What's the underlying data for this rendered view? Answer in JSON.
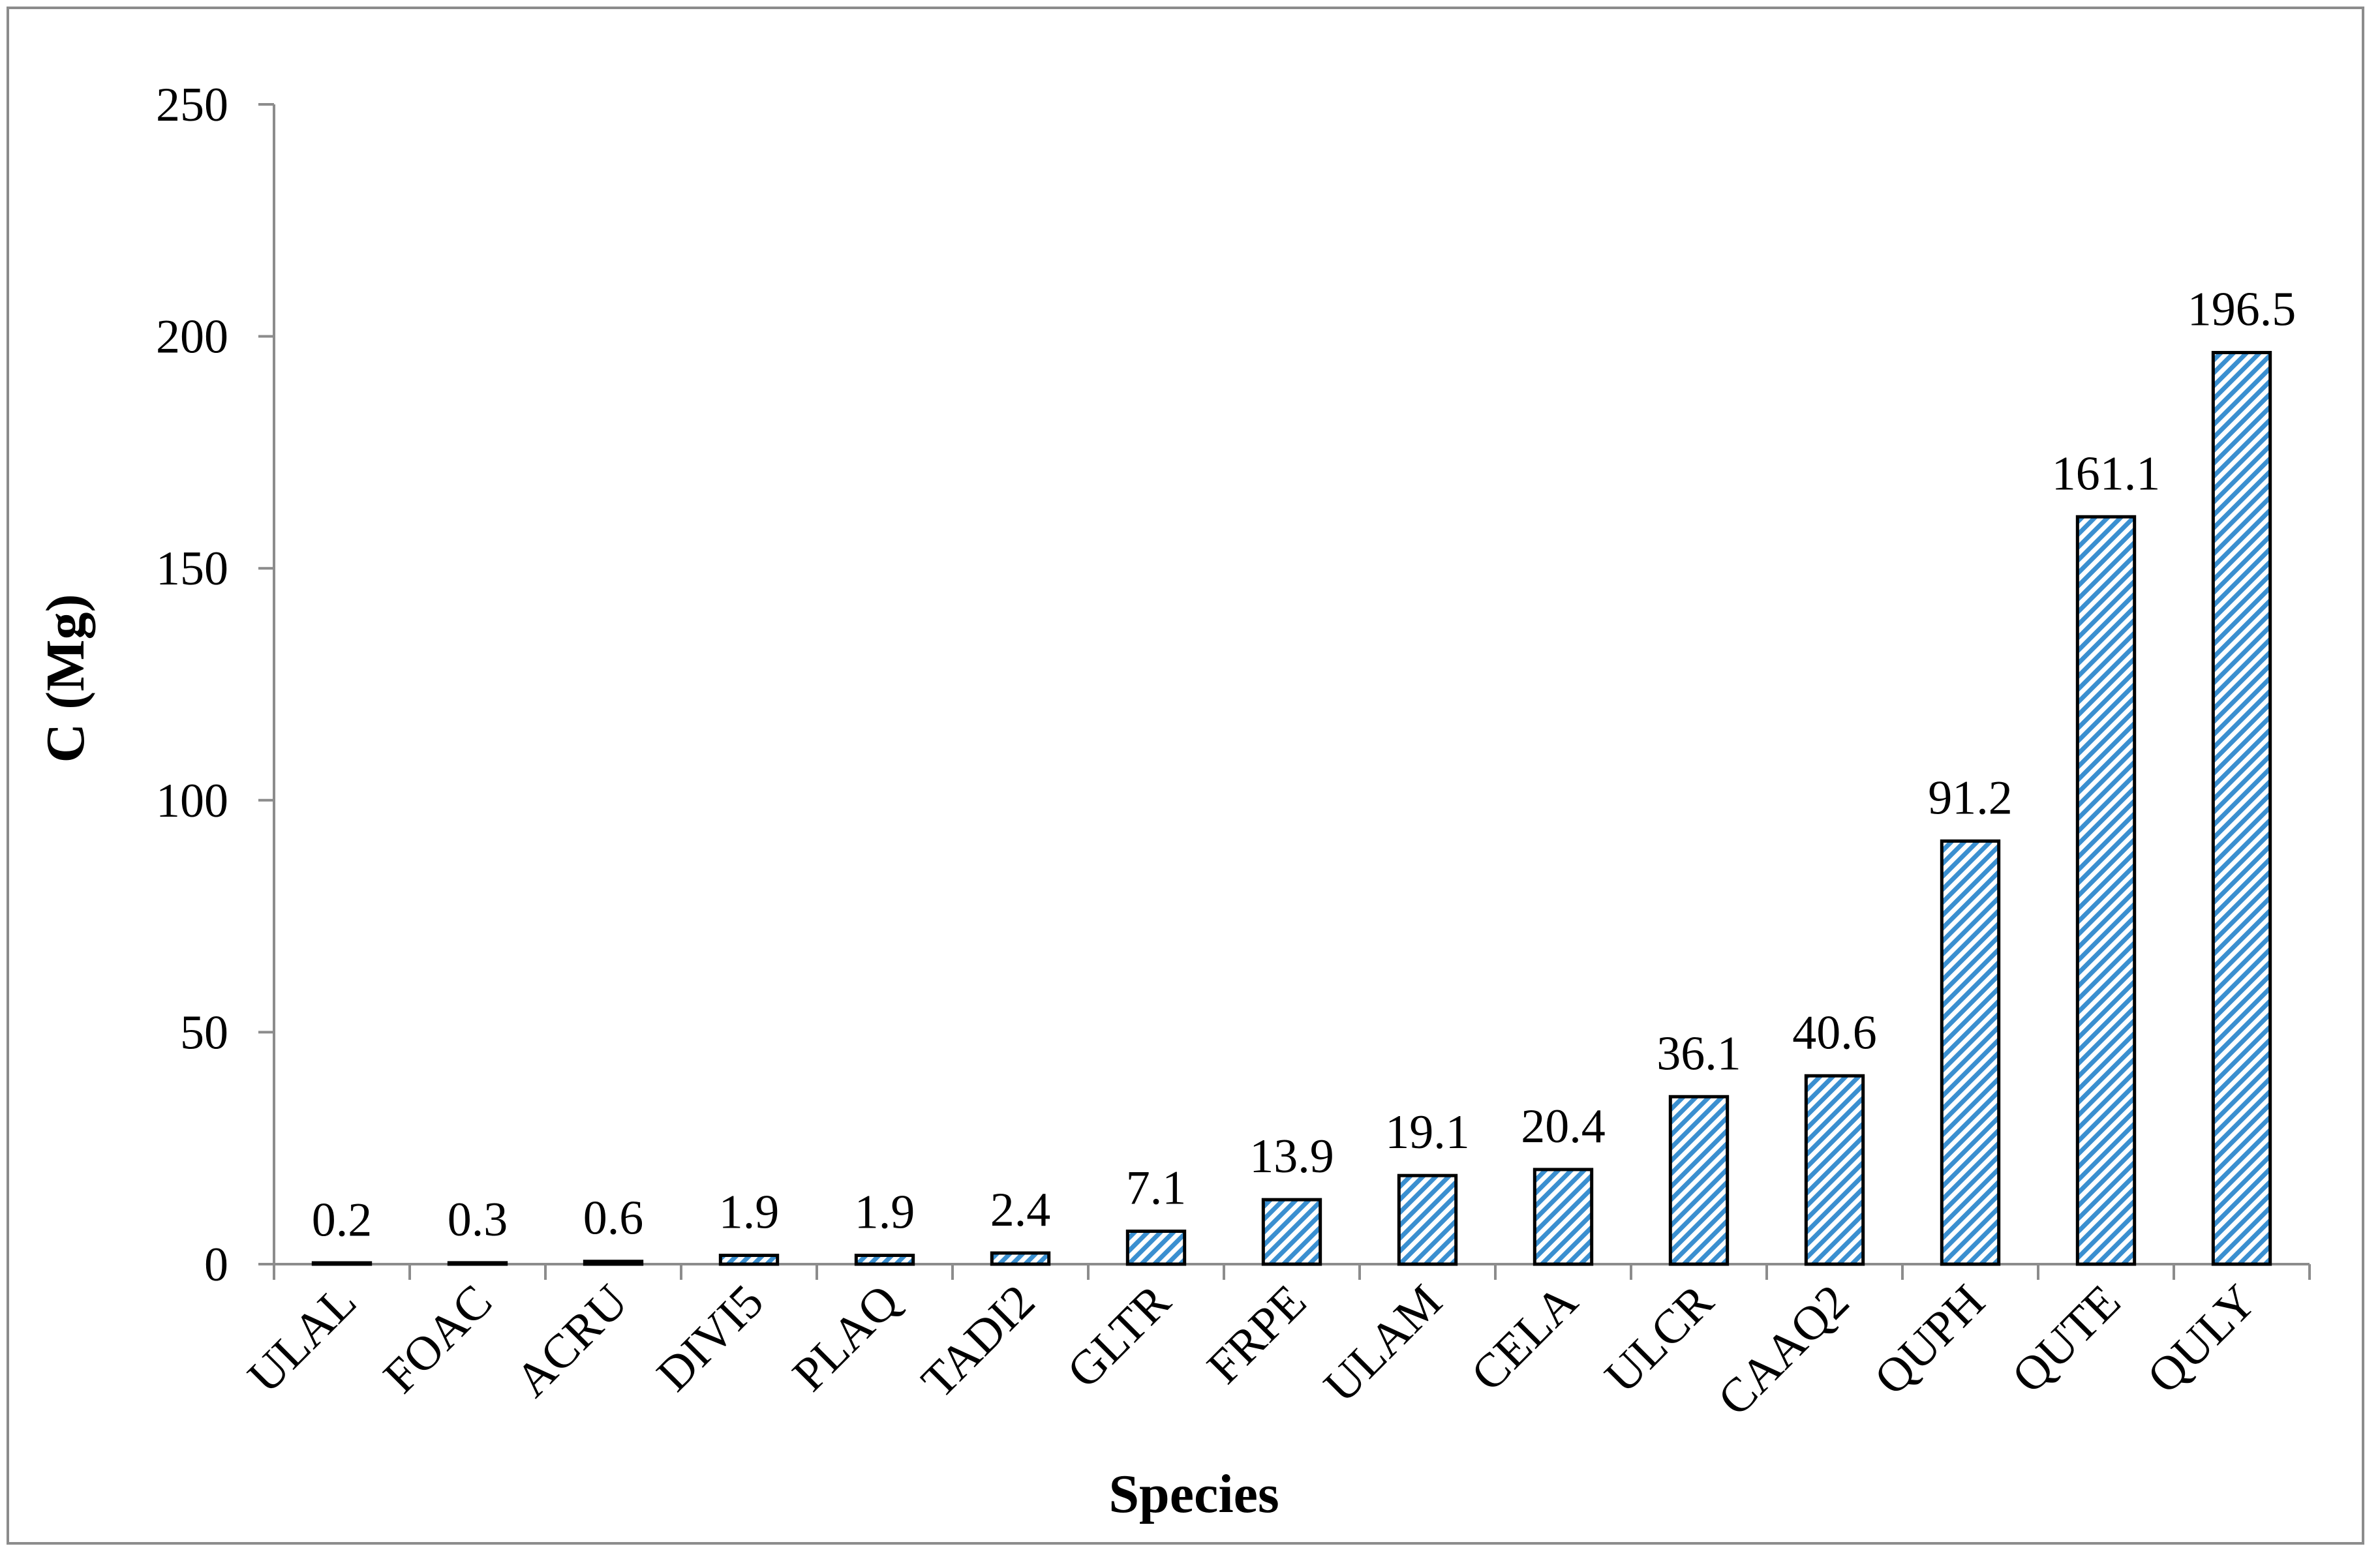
{
  "chart_data": {
    "type": "bar",
    "title": "",
    "xlabel": "Species",
    "ylabel": "C (Mg)",
    "ylim": [
      0,
      250
    ],
    "yticks": [
      0,
      50,
      100,
      150,
      200,
      250
    ],
    "categories": [
      "ULAL",
      "FOAC",
      "ACRU",
      "DIVI5",
      "PLAQ",
      "TADI2",
      "GLTR",
      "FRPE",
      "ULAM",
      "CELA",
      "ULCR",
      "CAAQ2",
      "QUPH",
      "QUTE",
      "QULY"
    ],
    "values": [
      0.2,
      0.3,
      0.6,
      1.9,
      1.9,
      2.4,
      7.1,
      13.9,
      19.1,
      20.4,
      36.1,
      40.6,
      91.2,
      161.1,
      196.5
    ],
    "data_labels": [
      "0.2",
      "0.3",
      "0.6",
      "1.9",
      "1.9",
      "2.4",
      "7.1",
      "13.9",
      "19.1",
      "20.4",
      "36.1",
      "40.6",
      "91.2",
      "161.1",
      "196.5"
    ],
    "bar_fill": "diagonal-hatch",
    "bar_color": "#3a8fd0",
    "bar_edge_color": "#000000",
    "grid": false,
    "legend": "none"
  }
}
